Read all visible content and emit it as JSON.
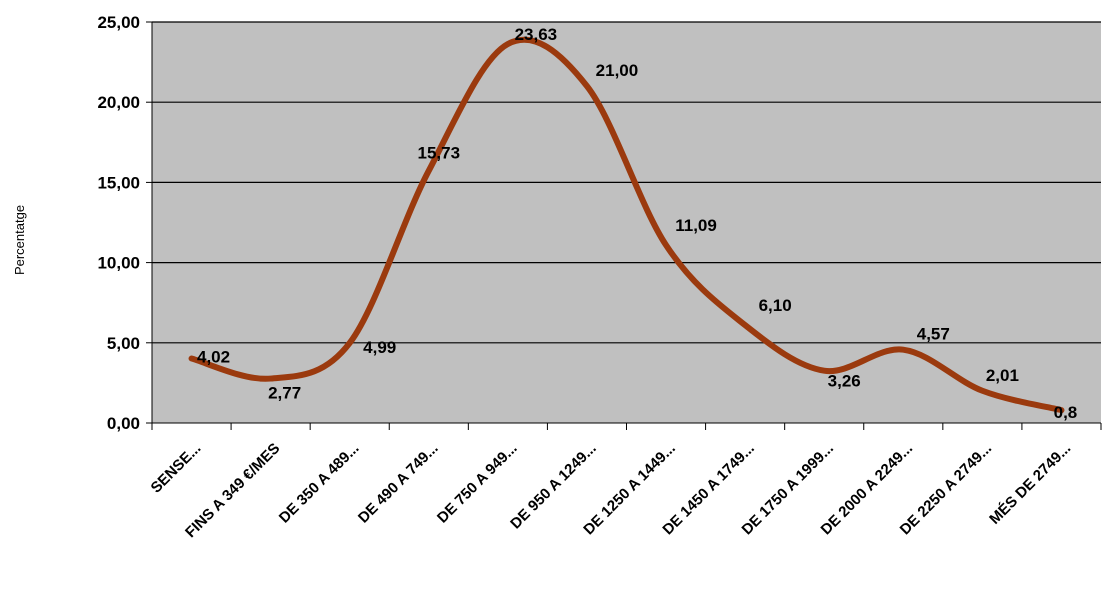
{
  "chart_data": {
    "type": "line",
    "title": "",
    "xlabel": "",
    "ylabel": "Percentatge",
    "ylim": [
      0,
      25
    ],
    "y_ticks": [
      "0,00",
      "5,00",
      "10,00",
      "15,00",
      "20,00",
      "25,00"
    ],
    "grid": true,
    "legend": "none",
    "categories": [
      "SENSE...",
      "FINS A 349 €/MES",
      "DE 350 A 489...",
      "DE 490 A 749...",
      "DE 750 A 949...",
      "DE 950 A 1249...",
      "DE 1250 A 1449...",
      "DE 1450 A 1749...",
      "DE 1750 A 1999...",
      "DE 2000 A 2249...",
      "DE 2250 A 2749...",
      "MÉS DE 2749..."
    ],
    "values": [
      4.02,
      2.77,
      4.99,
      15.73,
      23.63,
      21.0,
      11.09,
      6.1,
      3.26,
      4.57,
      2.01,
      0.8
    ],
    "data_labels": [
      "4,02",
      "2,77",
      "4,99",
      "15,73",
      "23,63",
      "21,00",
      "11,09",
      "6,10",
      "3,26",
      "4,57",
      "2,01",
      "0,8"
    ],
    "colors": {
      "line": "#9b3a0e",
      "plot_bg": "#c0c0c0",
      "gridline": "#000000"
    }
  }
}
